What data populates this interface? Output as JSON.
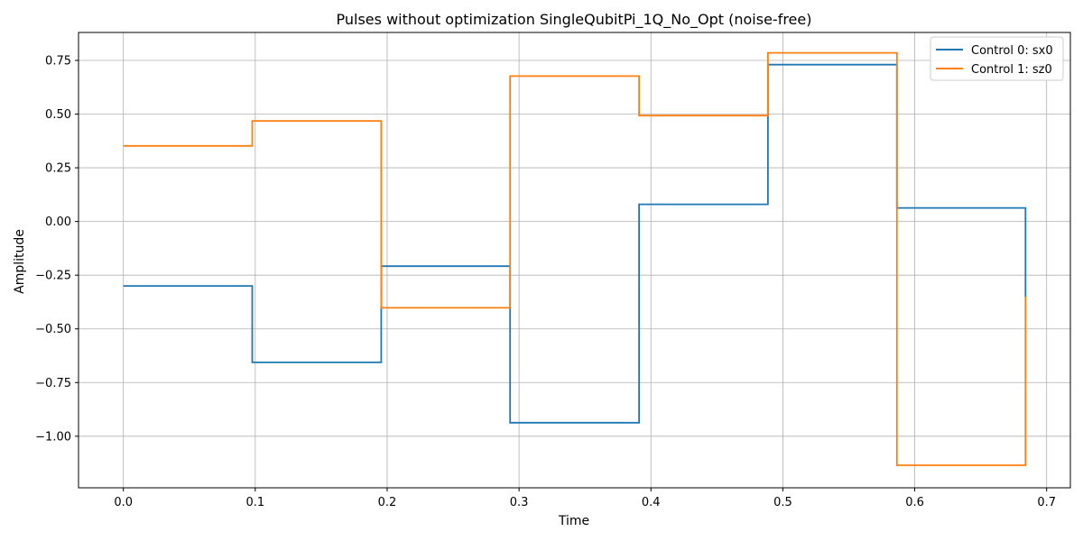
{
  "chart_data": {
    "type": "line",
    "step": "post",
    "title": "Pulses without optimization SingleQubitPi_1Q_No_Opt (noise-free)",
    "xlabel": "Time",
    "ylabel": "Amplitude",
    "xlim": [
      -0.034,
      0.718
    ],
    "ylim": [
      -1.24,
      0.88
    ],
    "xticks": [
      0.0,
      0.1,
      0.2,
      0.3,
      0.4,
      0.5,
      0.6,
      0.7
    ],
    "xtick_labels": [
      "0.0",
      "0.1",
      "0.2",
      "0.3",
      "0.4",
      "0.5",
      "0.6",
      "0.7"
    ],
    "yticks": [
      0.75,
      0.5,
      0.25,
      0.0,
      -0.25,
      -0.5,
      -0.75,
      -1.0
    ],
    "ytick_labels": [
      "0.75",
      "0.50",
      "0.25",
      "0.00",
      "−0.25",
      "−0.50",
      "−0.75",
      "−1.00"
    ],
    "grid": true,
    "legend_position": "top-right",
    "x": [
      0.0,
      0.0977,
      0.1955,
      0.2932,
      0.391,
      0.4887,
      0.5865,
      0.684
    ],
    "series": [
      {
        "name": "Control 0: sx0",
        "color": "#1f77b4",
        "values": [
          -0.3,
          -0.656,
          -0.208,
          -0.937,
          0.08,
          0.73,
          0.063,
          -0.35
        ]
      },
      {
        "name": "Control 1: sz0",
        "color": "#ff7f0e",
        "values": [
          0.352,
          0.468,
          -0.402,
          0.677,
          0.493,
          0.785,
          -1.135,
          -0.35
        ]
      }
    ]
  }
}
